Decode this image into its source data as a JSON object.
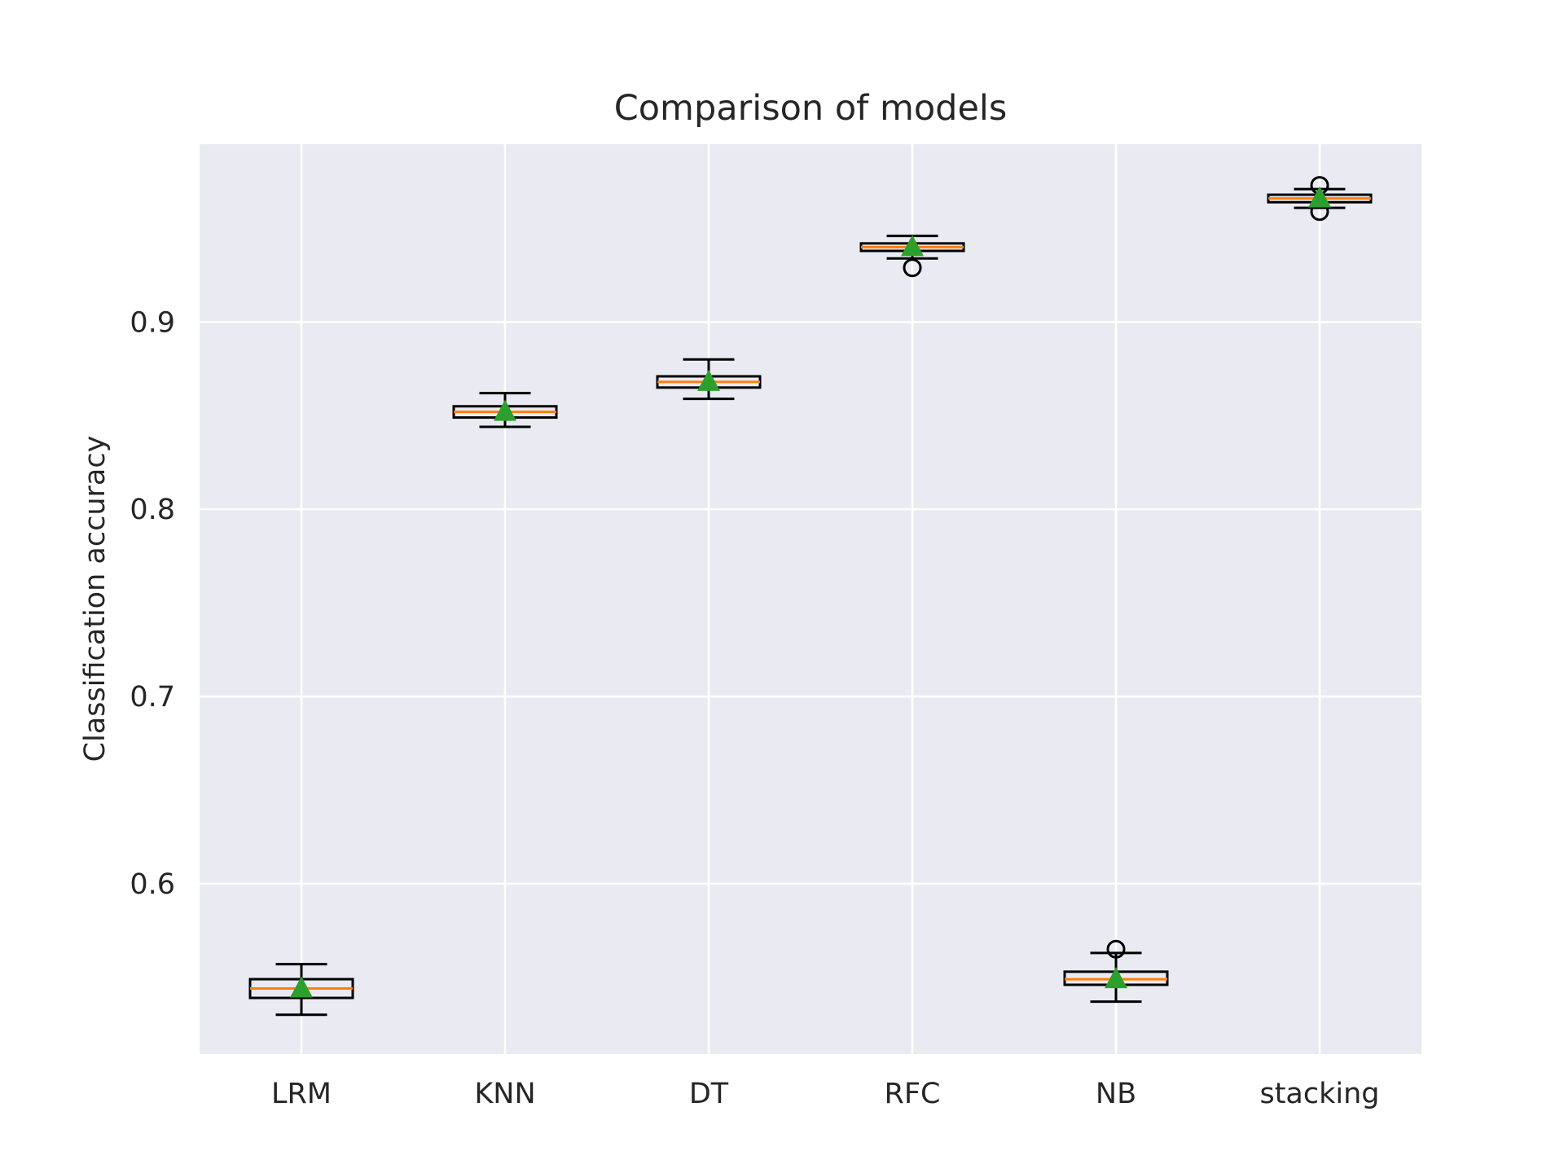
{
  "chart_data": {
    "type": "box",
    "title": "Comparison of models",
    "xlabel": "",
    "ylabel": "Classification accuracy",
    "ylim": [
      0.509,
      0.995
    ],
    "yticks": [
      0.6,
      0.7,
      0.8,
      0.9
    ],
    "ytick_labels": [
      "0.6",
      "0.7",
      "0.8",
      "0.9"
    ],
    "grid": true,
    "categories": [
      "LRM",
      "KNN",
      "DT",
      "RFC",
      "NB",
      "stacking"
    ],
    "boxes": [
      {
        "name": "LRM",
        "whisker_low": 0.53,
        "q1": 0.539,
        "median": 0.544,
        "q3": 0.549,
        "whisker_high": 0.557,
        "mean": 0.544,
        "outliers": []
      },
      {
        "name": "KNN",
        "whisker_low": 0.844,
        "q1": 0.849,
        "median": 0.852,
        "q3": 0.855,
        "whisker_high": 0.862,
        "mean": 0.852,
        "outliers": []
      },
      {
        "name": "DT",
        "whisker_low": 0.859,
        "q1": 0.865,
        "median": 0.868,
        "q3": 0.871,
        "whisker_high": 0.88,
        "mean": 0.868,
        "outliers": []
      },
      {
        "name": "RFC",
        "whisker_low": 0.934,
        "q1": 0.938,
        "median": 0.94,
        "q3": 0.942,
        "whisker_high": 0.946,
        "mean": 0.94,
        "outliers": [
          0.929
        ]
      },
      {
        "name": "NB",
        "whisker_low": 0.537,
        "q1": 0.546,
        "median": 0.549,
        "q3": 0.553,
        "whisker_high": 0.563,
        "mean": 0.549,
        "outliers": [
          0.565
        ]
      },
      {
        "name": "stacking",
        "whisker_low": 0.961,
        "q1": 0.964,
        "median": 0.966,
        "q3": 0.968,
        "whisker_high": 0.971,
        "mean": 0.966,
        "outliers": [
          0.959,
          0.973
        ]
      }
    ],
    "colors": {
      "plot_background": "#eaeaf2",
      "grid": "#ffffff",
      "box_edge": "#000000",
      "median": "#ff7f0e",
      "mean_marker": "#2ca02c",
      "text": "#262626"
    }
  }
}
